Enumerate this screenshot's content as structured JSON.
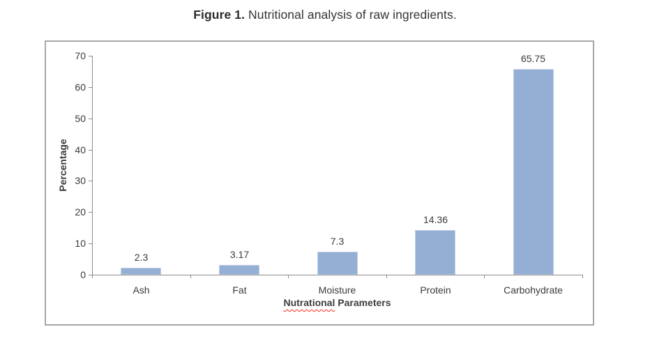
{
  "caption": {
    "prefix": "Figure 1.",
    "text": " Nutritional analysis of raw ingredients."
  },
  "chart_data": {
    "type": "bar",
    "categories": [
      "Ash",
      "Fat",
      "Moisture",
      "Protein",
      "Carbohydrate"
    ],
    "values": [
      2.3,
      3.17,
      7.3,
      14.36,
      65.75
    ],
    "value_labels": [
      "2.3",
      "3.17",
      "7.3",
      "14.36",
      "65.75"
    ],
    "title": "Figure 1. Nutritional analysis of raw ingredients.",
    "xlabel": {
      "full": "Nutrational Parameters",
      "misspelled_word": "Nutrational",
      "rest": " Parameters",
      "spellcheck_underline": true
    },
    "ylabel": "Percentage",
    "ylim": [
      0,
      70
    ],
    "yticks": [
      0,
      10,
      20,
      30,
      40,
      50,
      60,
      70
    ],
    "grid": false,
    "legend": "none",
    "colors": {
      "bar_fill": "#95aed3",
      "bar_edge": "#bfcfe6",
      "axis": "#8a8a8a",
      "frame_border": "#a6a6a6",
      "text": "#3a3a3a",
      "spellcheck": "#ff2a1c"
    }
  }
}
